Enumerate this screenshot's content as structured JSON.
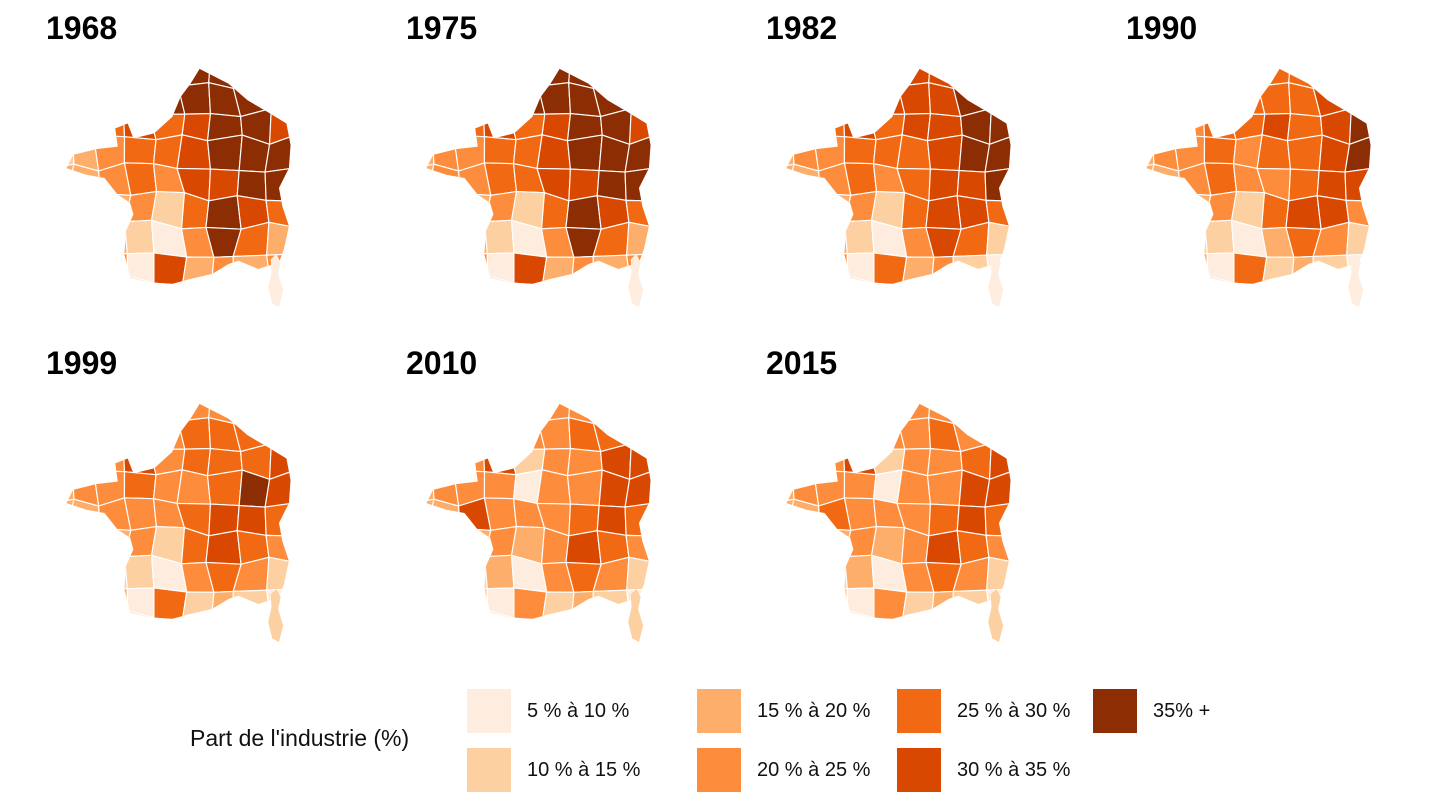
{
  "legend": {
    "title": "Part de l'industrie (%)",
    "items": [
      {
        "label": "5 % à 10 %",
        "color": "#feedde"
      },
      {
        "label": "10 % à 15 %",
        "color": "#fdd0a2"
      },
      {
        "label": "15 % à 20 %",
        "color": "#fdae6b"
      },
      {
        "label": "20 % à 25 %",
        "color": "#fd8d3c"
      },
      {
        "label": "25 % à 30 %",
        "color": "#f16913"
      },
      {
        "label": "30 % à 35 %",
        "color": "#d94801"
      },
      {
        "label": "35% +",
        "color": "#8c2d04"
      }
    ]
  },
  "chart_data": {
    "type": "choropleth",
    "layout": "small-multiples",
    "region": "France (départements)",
    "title": "Part de l'industrie (%)",
    "legend_position": "bottom",
    "classes": [
      "5 % à 10 %",
      "10 % à 15 %",
      "15 % à 20 %",
      "20 % à 25 %",
      "25 % à 30 %",
      "30 % à 35 %",
      "35% +"
    ],
    "palette": [
      "#feedde",
      "#fdd0a2",
      "#fdae6b",
      "#fd8d3c",
      "#f16913",
      "#d94801",
      "#8c2d04"
    ],
    "grid_note": "approximate class-index raster read from each map; 9 rows (north to south) x 9 cols (west to east); value = index into classes/palette",
    "facets": [
      {
        "year": "1968",
        "corsica": 0,
        "grid": [
          "333466653",
          "334566665",
          "224545665",
          "123445666",
          "223435566",
          "222314654",
          "212103642",
          "223052323",
          "223342222"
        ]
      },
      {
        "year": "1975",
        "corsica": 0,
        "grid": [
          "333466653",
          "334466665",
          "234545665",
          "233445666",
          "233445566",
          "222314654",
          "212103642",
          "223052323",
          "223342222"
        ]
      },
      {
        "year": "1982",
        "corsica": 0,
        "grid": [
          "333455553",
          "334455565",
          "224545566",
          "233444566",
          "223434556",
          "222314554",
          "212103541",
          "223042310",
          "223342110"
        ]
      },
      {
        "year": "1990",
        "corsica": 0,
        "grid": [
          "333444443",
          "333444454",
          "223445456",
          "233434456",
          "223433455",
          "122314553",
          "211102431",
          "112041210",
          "122331100"
        ]
      },
      {
        "year": "1999",
        "corsica": 1,
        "grid": [
          "233333333",
          "233334443",
          "223534445",
          "233433465",
          "223334554",
          "122314543",
          "211103431",
          "112041210",
          "112331000"
        ]
      },
      {
        "year": "2010",
        "corsica": 1,
        "grid": [
          "223333332",
          "233333443",
          "223513355",
          "233303355",
          "225333454",
          "122323543",
          "111203431",
          "111031210",
          "112231000"
        ]
      },
      {
        "year": "2015",
        "corsica": 1,
        "grid": [
          "222233332",
          "222333432",
          "223513345",
          "233303355",
          "224333454",
          "122323543",
          "111203431",
          "011031210",
          "112231000"
        ]
      }
    ]
  }
}
